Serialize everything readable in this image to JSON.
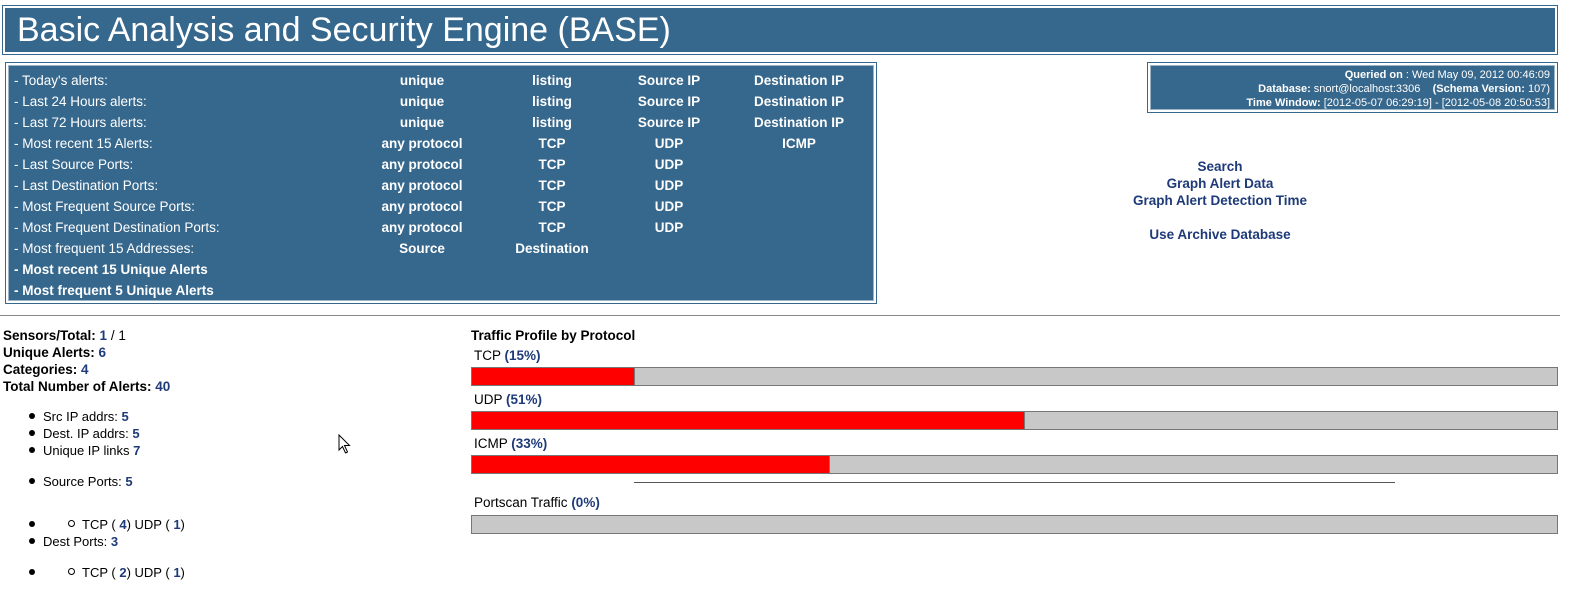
{
  "header": {
    "title": "Basic Analysis and Security Engine (BASE)"
  },
  "menu": {
    "rows": [
      {
        "label": "- Today's alerts:",
        "bold": false,
        "cells": [
          "unique",
          "listing",
          "Source IP",
          "Destination IP"
        ]
      },
      {
        "label": "- Last 24 Hours alerts:",
        "bold": false,
        "cells": [
          "unique",
          "listing",
          "Source IP",
          "Destination IP"
        ]
      },
      {
        "label": "- Last 72 Hours alerts:",
        "bold": false,
        "cells": [
          "unique",
          "listing",
          "Source IP",
          "Destination IP"
        ]
      },
      {
        "label": "- Most recent 15 Alerts:",
        "bold": false,
        "cells": [
          "any protocol",
          "TCP",
          "UDP",
          "ICMP"
        ]
      },
      {
        "label": "- Last Source Ports:",
        "bold": false,
        "cells": [
          "any protocol",
          "TCP",
          "UDP"
        ]
      },
      {
        "label": "- Last Destination Ports:",
        "bold": false,
        "cells": [
          "any protocol",
          "TCP",
          "UDP"
        ]
      },
      {
        "label": "- Most Frequent Source Ports:",
        "bold": false,
        "cells": [
          "any protocol",
          "TCP",
          "UDP"
        ]
      },
      {
        "label": "- Most Frequent Destination Ports:",
        "bold": false,
        "cells": [
          "any protocol",
          "TCP",
          "UDP"
        ]
      },
      {
        "label": "- Most frequent 15 Addresses:",
        "bold": false,
        "cells": [
          "Source",
          "Destination"
        ]
      },
      {
        "label": "- Most recent 15 Unique Alerts",
        "bold": true,
        "cells": []
      },
      {
        "label": "- Most frequent 5 Unique Alerts",
        "bold": true,
        "cells": []
      }
    ]
  },
  "info": {
    "queried_label": "Queried on",
    "queried_value": " : Wed May 09, 2012 00:46:09",
    "database_label": "Database:",
    "database_value": " snort@localhost:3306",
    "schema_label": "(Schema Version:",
    "schema_value": " 107)",
    "time_window_label": "Time Window:",
    "time_window_value": " [2012-05-07 06:29:19] - [2012-05-08 20:50:53]"
  },
  "links": {
    "search": "Search",
    "graph_alert_data": "Graph Alert Data",
    "graph_alert_detection_time": "Graph Alert Detection Time",
    "use_archive_database": "Use Archive Database"
  },
  "stats": {
    "sensors_label": "Sensors/Total:",
    "sensors_value": "1",
    "sensors_total": " / 1",
    "unique_alerts_label": "Unique Alerts:",
    "unique_alerts_value": "6",
    "categories_label": "Categories:",
    "categories_value": "4",
    "total_alerts_label": "Total Number of Alerts:",
    "total_alerts_value": "40",
    "src_ip_label": "Src IP addrs:",
    "src_ip_value": "5",
    "dest_ip_label": "Dest. IP addrs:",
    "dest_ip_value": "5",
    "unique_links_label": "Unique IP links",
    "unique_links_value": "7",
    "source_ports_label": "Source Ports:",
    "source_ports_value": "5",
    "src_tcp_label": "TCP (",
    "src_tcp_value": "4",
    "src_udp_label": ")  UDP (",
    "src_udp_value": "1",
    "close_paren": ")",
    "dest_ports_label": "Dest Ports:",
    "dest_ports_value": "3",
    "dst_tcp_label": "TCP (",
    "dst_tcp_value": "2",
    "dst_udp_label": ")  UDP (",
    "dst_udp_value": "1"
  },
  "traffic": {
    "title": "Traffic Profile by Protocol",
    "protocols": [
      {
        "name": "TCP",
        "pct_label": "(15%)",
        "fraction": 0.15
      },
      {
        "name": "UDP",
        "pct_label": "(51%)",
        "fraction": 0.51
      },
      {
        "name": "ICMP",
        "pct_label": "(33%)",
        "fraction": 0.33
      }
    ],
    "portscan": {
      "name": "Portscan Traffic",
      "pct_label": "(0%)",
      "fraction": 0.0
    }
  },
  "colors": {
    "panel": "#36678c",
    "bar_fill": "#ff0000",
    "bar_empty": "#c8c8c8",
    "link": "#1e3a78"
  }
}
